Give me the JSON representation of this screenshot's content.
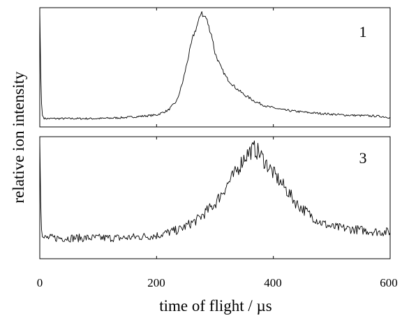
{
  "chart_data": [
    {
      "type": "line",
      "panel_label": "1",
      "xlim": [
        0,
        600
      ],
      "ylim": [
        0,
        1
      ],
      "x_ticks": [
        0,
        200,
        400,
        600
      ],
      "series": [
        {
          "x": [
            0,
            2,
            4,
            8,
            20,
            50,
            100,
            150,
            200,
            220,
            235,
            245,
            255,
            262,
            268,
            273,
            277,
            280,
            283,
            286,
            290,
            295,
            300,
            310,
            320,
            335,
            350,
            370,
            390,
            420,
            460,
            520,
            580,
            600
          ],
          "y": [
            0.97,
            0.3,
            0.1,
            0.07,
            0.07,
            0.07,
            0.07,
            0.08,
            0.1,
            0.14,
            0.22,
            0.38,
            0.6,
            0.75,
            0.83,
            0.9,
            0.98,
            0.92,
            0.93,
            0.9,
            0.83,
            0.76,
            0.62,
            0.5,
            0.41,
            0.33,
            0.27,
            0.21,
            0.17,
            0.14,
            0.12,
            0.1,
            0.09,
            0.08
          ],
          "noise": 0.012
        }
      ]
    },
    {
      "type": "line",
      "panel_label": "3",
      "xlim": [
        0,
        600
      ],
      "ylim": [
        0,
        1
      ],
      "x_ticks": [
        0,
        200,
        400,
        600
      ],
      "series": [
        {
          "x": [
            0,
            2,
            4,
            8,
            30,
            80,
            140,
            200,
            240,
            270,
            300,
            320,
            335,
            350,
            360,
            368,
            375,
            385,
            400,
            420,
            440,
            460,
            480,
            500,
            540,
            580,
            600
          ],
          "y": [
            0.97,
            0.3,
            0.18,
            0.17,
            0.17,
            0.17,
            0.17,
            0.19,
            0.24,
            0.32,
            0.45,
            0.6,
            0.7,
            0.83,
            0.88,
            0.9,
            0.87,
            0.8,
            0.7,
            0.58,
            0.45,
            0.37,
            0.3,
            0.26,
            0.24,
            0.22,
            0.22
          ],
          "noise": 0.04
        }
      ]
    }
  ],
  "axes": {
    "xlabel": "time of flight / µs",
    "ylabel": "relative ion intensity",
    "x_tick_labels": [
      "0",
      "200",
      "400",
      "600"
    ]
  }
}
